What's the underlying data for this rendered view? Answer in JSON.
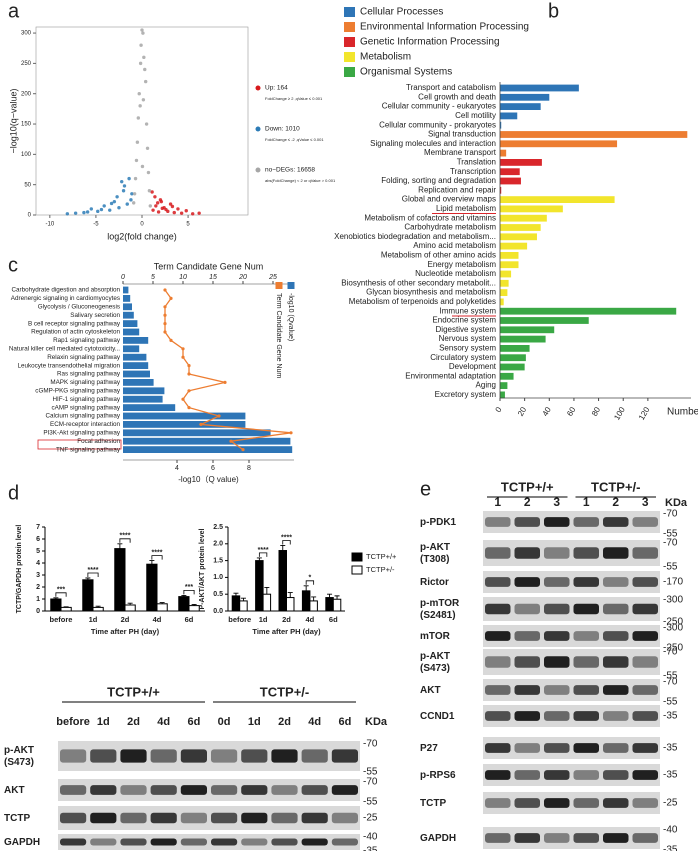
{
  "panel_labels": [
    "a",
    "b",
    "c",
    "d",
    "e"
  ],
  "chart_data": [
    {
      "type": "scatter",
      "xlabel": "log2(fold change)",
      "ylabel": "−log10(q−value)",
      "xlim": [
        -11.5,
        11.5
      ],
      "xticks": [
        -10,
        -5,
        0,
        5
      ],
      "ylim": [
        0,
        310
      ],
      "yticks": [
        0,
        50,
        100,
        150,
        200,
        250,
        300
      ],
      "series": [
        {
          "name": "Up: 164",
          "note": "FoldChange ≥ 2 ,qValue ≤ 0.001",
          "color": "#d7191c",
          "x": [
            1.2,
            1.5,
            1.8,
            2.1,
            2.4,
            2.8,
            3.1,
            3.5,
            3.9,
            4.3,
            4.8,
            5.5,
            6.2,
            1.4,
            2.0,
            2.6,
            3.3,
            1.1,
            1.7,
            2.2
          ],
          "values": [
            8,
            15,
            5,
            22,
            12,
            6,
            18,
            4,
            10,
            3,
            7,
            2,
            3,
            30,
            25,
            9,
            14,
            38,
            20,
            11
          ]
        },
        {
          "name": "Down: 1010",
          "note": "FoldChange ≤ -2 ,qValue ≤ 0.001",
          "color": "#2c7bb6",
          "x": [
            -1.2,
            -1.6,
            -2.0,
            -2.5,
            -3.0,
            -3.5,
            -4.1,
            -4.8,
            -5.5,
            -6.3,
            -7.2,
            -8.1,
            -1.4,
            -1.9,
            -2.7,
            -3.3,
            -4.4,
            -5.9,
            -1.1,
            -2.2
          ],
          "values": [
            25,
            18,
            40,
            12,
            22,
            8,
            15,
            6,
            10,
            4,
            3,
            2,
            60,
            48,
            30,
            19,
            9,
            5,
            35,
            55
          ]
        },
        {
          "name": "no−DEGs: 16658",
          "note": "abs(FoldChange) < 2  or qValue > 0.001",
          "color": "#a6a6a6",
          "x": [
            -0.9,
            -0.7,
            -0.5,
            -0.3,
            -0.1,
            0.1,
            0.3,
            0.5,
            0.7,
            0.9,
            -0.6,
            -0.2,
            0.2,
            0.6,
            -0.4,
            0.4,
            0,
            -0.8,
            0.8,
            0.15,
            -0.15,
            0.05
          ],
          "values": [
            20,
            60,
            120,
            200,
            280,
            300,
            240,
            150,
            70,
            15,
            90,
            180,
            260,
            110,
            160,
            220,
            305,
            35,
            40,
            190,
            250,
            80
          ]
        }
      ]
    },
    {
      "type": "bar",
      "orientation": "horizontal",
      "xlabel": "Number",
      "xlim": [
        0,
        155
      ],
      "xticks": [
        0,
        20,
        40,
        60,
        80,
        100,
        120
      ],
      "series": [
        {
          "name": "Cellular Processes",
          "color": "#2e75b6",
          "categories": [
            "Transport and catabolism",
            "Cell growth and death",
            "Cellular community - eukaryotes",
            "Cell motility",
            "Cellular community - prokaryotes"
          ],
          "values": [
            64,
            40,
            33,
            14,
            1
          ]
        },
        {
          "name": "Environmental Information Processing",
          "color": "#ed7d31",
          "categories": [
            "Signal transduction",
            "Signaling molecules and interaction",
            "Membrane transport"
          ],
          "values": [
            152,
            95,
            5
          ]
        },
        {
          "name": "Genetic Information Processing",
          "color": "#d9262b",
          "categories": [
            "Translation",
            "Transcription",
            "Folding, sorting and degradation",
            "Replication and repair"
          ],
          "values": [
            34,
            16,
            17,
            1
          ]
        },
        {
          "name": "Metabolism",
          "color": "#f2e52c",
          "categories": [
            "Global and overview maps",
            "Lipid metabolism",
            "Metabolism of cofactors and vitamins",
            "Carbohydrate metabolism",
            "Xenobiotics biodegradation and metabolism...",
            "Amino acid metabolism",
            "Metabolism of other amino acids",
            "Energy metabolism",
            "Nucleotide metabolism",
            "Biosynthesis of other secondary metabolit...",
            "Glycan biosynthesis and metabolism",
            "Metabolism of terpenoids and polyketides"
          ],
          "values": [
            93,
            51,
            38,
            33,
            30,
            22,
            15,
            15,
            9,
            7,
            6,
            3
          ]
        },
        {
          "name": "Organismal Systems",
          "color": "#3aa845",
          "categories": [
            "Immune system",
            "Endocrine system",
            "Digestive system",
            "Nervous system",
            "Sensory system",
            "Circulatory system",
            "Development",
            "Environmental adaptation",
            "Aging",
            "Excretory system"
          ],
          "values": [
            143,
            72,
            44,
            37,
            24,
            21,
            20,
            11,
            6,
            4
          ]
        }
      ]
    },
    {
      "type": "bar_line",
      "orientation": "horizontal",
      "xlabel": "-log10（Q value)",
      "x2label": "Term Candidate Gene Num",
      "xlim": [
        1,
        10.5
      ],
      "xticks": [
        4,
        6,
        8
      ],
      "x2lim": [
        0,
        28.5
      ],
      "x2ticks": [
        0,
        5,
        10,
        15,
        20,
        25
      ],
      "categories": [
        "Carbohydrate digestion and absorption",
        "Adrenergic signaling in cardiomyocytes",
        "Glycolysis / Gluconeogenesis",
        "Salivary secretion",
        "B cell receptor signaling pathway",
        "Regulation of actin cytoskeleton",
        "Rap1 signaling pathway",
        "Natural killer cell mediated cytotoxicity...",
        "Relaxin signaling pathway",
        "Leukocyte transendothelial migration",
        "Ras signaling pathway",
        "MAPK signaling pathway",
        "cGMP-PKG signaling pathway",
        "HIF-1 signaling pathway",
        "cAMP signaling pathway",
        "Calcium signaling pathway",
        "ECM-receptor interaction",
        "PI3K-Akt signaling pathway",
        "Focal adhesion",
        "TNF signaling pathway"
      ],
      "series": [
        {
          "name": "-log10 (Qvalue)",
          "color": "#2e75b6",
          "values": [
            1.3,
            1.4,
            1.5,
            1.6,
            1.8,
            1.9,
            2.4,
            1.9,
            2.3,
            2.4,
            2.5,
            2.7,
            3.3,
            3.2,
            3.9,
            7.8,
            7.8,
            9.2,
            10.3,
            10.4
          ]
        },
        {
          "name": "Term Candidate Gene Num",
          "color": "#ed7d31",
          "axis": "x2",
          "values": [
            7,
            8,
            7,
            7,
            7,
            7,
            8,
            10,
            10,
            11,
            11,
            17,
            11,
            10,
            11,
            16,
            13,
            28,
            18,
            20
          ]
        }
      ]
    },
    {
      "type": "bar",
      "grouped": true,
      "ylabel": "TCTP/GAPDH protein level",
      "xlabel": "Time after PH (day)",
      "ylim": [
        0,
        7
      ],
      "yticks": [
        0,
        1,
        2,
        3,
        4,
        5,
        6,
        7
      ],
      "categories": [
        "before",
        "1d",
        "2d",
        "4d",
        "6d"
      ],
      "significance": [
        "***",
        "****",
        "****",
        "****",
        "***"
      ],
      "series": [
        {
          "name": "TCTP+/+",
          "color": "#000000",
          "values": [
            1.0,
            2.6,
            5.2,
            3.9,
            1.2
          ],
          "errors": [
            0.1,
            0.15,
            0.4,
            0.3,
            0.1
          ]
        },
        {
          "name": "TCTP+/-",
          "color": "#ffffff",
          "values": [
            0.3,
            0.3,
            0.5,
            0.6,
            0.45
          ],
          "errors": [
            0.05,
            0.1,
            0.15,
            0.1,
            0.1
          ]
        }
      ]
    },
    {
      "type": "bar",
      "grouped": true,
      "ylabel": "P-AKT/AKT protein level",
      "xlabel": "Time after PH (day)",
      "ylim": [
        0,
        2.5
      ],
      "yticks": [
        {
          "value": 0,
          "label": "0.0"
        },
        {
          "value": 0.5,
          "label": "0.5"
        },
        {
          "value": 1,
          "label": "1.0"
        },
        {
          "value": 1.5,
          "label": "1.5"
        },
        {
          "value": 2,
          "label": "2.0"
        },
        {
          "value": 2.5,
          "label": "2.5"
        }
      ],
      "categories": [
        "before",
        "1d",
        "2d",
        "4d",
        "6d"
      ],
      "significance": [
        null,
        "****",
        "****",
        "*",
        null
      ],
      "legend": "right",
      "series": [
        {
          "name": "TCTP+/+",
          "color": "#000000",
          "values": [
            0.45,
            1.5,
            1.8,
            0.6,
            0.4
          ],
          "errors": [
            0.08,
            0.08,
            0.15,
            0.15,
            0.1
          ]
        },
        {
          "name": "TCTP+/-",
          "color": "#ffffff",
          "values": [
            0.3,
            0.5,
            0.4,
            0.3,
            0.35
          ],
          "errors": [
            0.08,
            0.2,
            0.15,
            0.12,
            0.1
          ]
        }
      ]
    }
  ],
  "blots": [
    {
      "unit": "KDa",
      "groups": [
        {
          "name": "TCTP+/+",
          "lanes": [
            "before",
            "1d",
            "2d",
            "4d",
            "6d"
          ]
        },
        {
          "name": "TCTP+/-",
          "lanes": [
            "0d",
            "1d",
            "2d",
            "4d",
            "6d"
          ]
        }
      ],
      "rows": [
        {
          "label": [
            "p-AKT",
            "(S473)"
          ],
          "markers": [
            "-70",
            "-55"
          ]
        },
        {
          "label": [
            "AKT"
          ],
          "markers": [
            "-70",
            "-55"
          ]
        },
        {
          "label": [
            "TCTP"
          ],
          "markers": [
            "-25"
          ]
        },
        {
          "label": [
            "GAPDH"
          ],
          "markers": [
            "-40",
            "-35"
          ]
        }
      ]
    },
    {
      "unit": "KDa",
      "groups": [
        {
          "name": "TCTP+/+",
          "lanes": [
            "1",
            "2",
            "3"
          ]
        },
        {
          "name": "TCTP+/-",
          "lanes": [
            "1",
            "2",
            "3"
          ]
        }
      ],
      "rows": [
        {
          "label": [
            "p-PDK1"
          ],
          "markers": [
            "-70",
            "-55"
          ]
        },
        {
          "label": [
            "p-AKT",
            "(T308)"
          ],
          "markers": [
            "-70",
            "-55"
          ]
        },
        {
          "label": [
            "Rictor"
          ],
          "markers": [
            "-170"
          ]
        },
        {
          "label": [
            "p-mTOR",
            "(S2481)"
          ],
          "markers": [
            "-300",
            "-250"
          ]
        },
        {
          "label": [
            "mTOR"
          ],
          "markers": [
            "-300",
            "-250"
          ]
        },
        {
          "label": [
            "p-AKT",
            "(S473)"
          ],
          "markers": [
            "-70",
            "-55"
          ]
        },
        {
          "label": [
            "AKT"
          ],
          "markers": [
            "-70",
            "-55"
          ]
        },
        {
          "label": [
            "CCND1"
          ],
          "markers": [
            "-35"
          ]
        },
        {
          "label": [
            "P27"
          ],
          "markers": [
            "-35"
          ]
        },
        {
          "label": [
            "p-RPS6"
          ],
          "markers": [
            "-35"
          ]
        },
        {
          "label": [
            "TCTP"
          ],
          "markers": [
            "-25"
          ]
        },
        {
          "label": [
            "GAPDH"
          ],
          "markers": [
            "-40",
            "-35"
          ]
        }
      ]
    }
  ]
}
